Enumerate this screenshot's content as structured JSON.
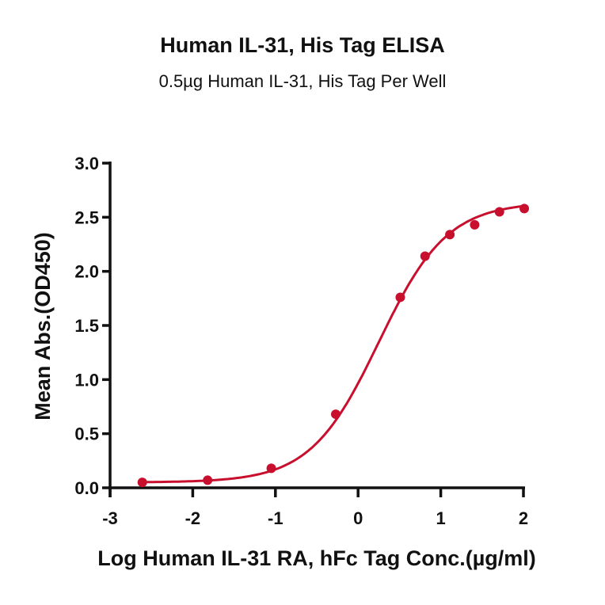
{
  "chart_data": {
    "type": "line",
    "title": "Human IL-31, His Tag ELISA",
    "subtitle": "0.5µg Human IL-31, His Tag Per Well",
    "xlabel": "Log Human IL-31 RA, hFc  Tag Conc.(µg/ml)",
    "ylabel": "Mean Abs.(OD450)",
    "xlim": [
      -3,
      2
    ],
    "ylim": [
      0,
      3.0
    ],
    "xticks": [
      "-3",
      "-2",
      "-1",
      "0",
      "1",
      "2"
    ],
    "yticks": [
      "0.0",
      "0.5",
      "1.0",
      "1.5",
      "2.0",
      "2.5",
      "3.0"
    ],
    "grid": false,
    "legend": null,
    "series": [
      {
        "name": "Human IL-31 RA, hFc Tag",
        "color": "#c8102e",
        "marker": "circle",
        "fit": "sigmoidal 4PL",
        "x": [
          -2.61,
          -1.82,
          -1.05,
          -0.27,
          0.51,
          0.81,
          1.11,
          1.41,
          1.71,
          2.01
        ],
        "y": [
          0.05,
          0.07,
          0.18,
          0.68,
          1.76,
          2.14,
          2.34,
          2.43,
          2.55,
          2.58
        ]
      }
    ]
  }
}
